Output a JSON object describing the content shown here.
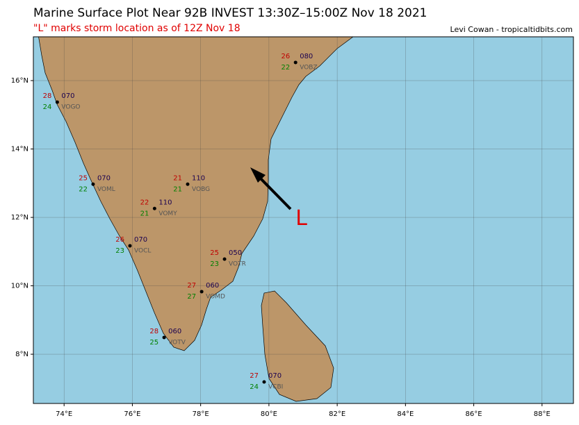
{
  "map": {
    "title": "Marine Surface Plot Near 92B INVEST 13:30Z–15:00Z Nov 18 2021",
    "subtitle": "\"L\" marks storm location as of 12Z Nov 18",
    "credit": "Levi Cowan - tropicaltidbits.com",
    "xlim": [
      73.1,
      88.92
    ],
    "ylim": [
      6.56,
      17.28
    ],
    "xticks": [
      {
        "value": 74,
        "label": "74°E"
      },
      {
        "value": 76,
        "label": "76°E"
      },
      {
        "value": 78,
        "label": "78°E"
      },
      {
        "value": 80,
        "label": "80°E"
      },
      {
        "value": 82,
        "label": "82°E"
      },
      {
        "value": 84,
        "label": "84°E"
      },
      {
        "value": 86,
        "label": "86°E"
      },
      {
        "value": 88,
        "label": "88°E"
      }
    ],
    "yticks": [
      {
        "value": 8,
        "label": "8°N"
      },
      {
        "value": 10,
        "label": "10°N"
      },
      {
        "value": 12,
        "label": "12°N"
      },
      {
        "value": 14,
        "label": "14°N"
      },
      {
        "value": 16,
        "label": "16°N"
      }
    ],
    "storm": {
      "label": "L",
      "lon": 80.95,
      "lat": 11.95
    },
    "stations": [
      {
        "id": "VOBZ",
        "lon": 80.78,
        "lat": 16.53,
        "temp": 26,
        "dewpoint": 22,
        "pressure": "080"
      },
      {
        "id": "VOGO",
        "lon": 73.8,
        "lat": 15.37,
        "temp": 28,
        "dewpoint": 24,
        "pressure": "070"
      },
      {
        "id": "VOML",
        "lon": 74.85,
        "lat": 12.97,
        "temp": 25,
        "dewpoint": 22,
        "pressure": "070"
      },
      {
        "id": "VOBG",
        "lon": 77.62,
        "lat": 12.97,
        "temp": 21,
        "dewpoint": 21,
        "pressure": "110"
      },
      {
        "id": "VOMY",
        "lon": 76.65,
        "lat": 12.26,
        "temp": 22,
        "dewpoint": 21,
        "pressure": "110"
      },
      {
        "id": "VOCL",
        "lon": 75.93,
        "lat": 11.17,
        "temp": 26,
        "dewpoint": 23,
        "pressure": "070"
      },
      {
        "id": "VOTR",
        "lon": 78.7,
        "lat": 10.78,
        "temp": 25,
        "dewpoint": 23,
        "pressure": "050"
      },
      {
        "id": "VOMD",
        "lon": 78.03,
        "lat": 9.83,
        "temp": 27,
        "dewpoint": 27,
        "pressure": "060"
      },
      {
        "id": "VOTV",
        "lon": 76.93,
        "lat": 8.49,
        "temp": 28,
        "dewpoint": 25,
        "pressure": "060"
      },
      {
        "id": "VCBI",
        "lon": 79.86,
        "lat": 7.19,
        "temp": 27,
        "dewpoint": 24,
        "pressure": "070"
      }
    ]
  }
}
